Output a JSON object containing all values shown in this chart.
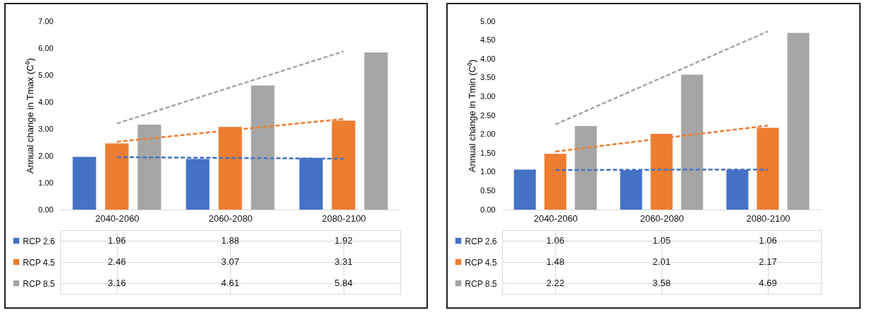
{
  "chart_data": [
    {
      "type": "bar",
      "ylabel": "Annual change in Tmax (C⁰)",
      "categories": [
        "2040-2060",
        "2060-2080",
        "2080-2100"
      ],
      "ylim": [
        0,
        7
      ],
      "yticks": [
        {
          "value": 0,
          "label": "0.00"
        },
        {
          "value": 1,
          "label": "1.00"
        },
        {
          "value": 2,
          "label": "2.00"
        },
        {
          "value": 3,
          "label": "3.00"
        },
        {
          "value": 4,
          "label": "4.00"
        },
        {
          "value": 5,
          "label": "5.00"
        },
        {
          "value": 6,
          "label": "6.00"
        },
        {
          "value": 7,
          "label": "7.00"
        }
      ],
      "tick_labels": "y",
      "legend": "bottom",
      "series": [
        {
          "name": "RCP 2.6",
          "color": "#4472c4",
          "values": [
            1.96,
            1.88,
            1.92
          ],
          "value_labels": [
            "1.96",
            "1.88",
            "1.92"
          ]
        },
        {
          "name": "RCP 4.5",
          "color": "#ed7d31",
          "values": [
            2.46,
            3.07,
            3.31
          ],
          "value_labels": [
            "2.46",
            "3.07",
            "3.31"
          ]
        },
        {
          "name": "RCP 8.5",
          "color": "#a5a5a5",
          "values": [
            3.16,
            4.61,
            5.84
          ],
          "value_labels": [
            "3.16",
            "4.61",
            "5.84"
          ]
        },
        {
          "type": "line",
          "line_style": "dashed",
          "color": "#4472c4",
          "values": [
            1.95,
            1.92,
            1.89
          ]
        },
        {
          "type": "line",
          "line_style": "dashed",
          "color": "#ed7d31",
          "values": [
            2.52,
            2.95,
            3.37
          ]
        },
        {
          "type": "line",
          "line_style": "dashed",
          "color": "#a5a5a5",
          "values": [
            3.2,
            4.54,
            5.88
          ]
        }
      ]
    },
    {
      "type": "bar",
      "ylabel": "Annual change in Tmin (C⁰)",
      "categories": [
        "2040-2060",
        "2060-2080",
        "2080-2100"
      ],
      "ylim": [
        0,
        5
      ],
      "yticks": [
        {
          "value": 0,
          "label": "0.00"
        },
        {
          "value": 0.5,
          "label": "0.50"
        },
        {
          "value": 1,
          "label": "1.00"
        },
        {
          "value": 1.5,
          "label": "1.50"
        },
        {
          "value": 2,
          "label": "2.00"
        },
        {
          "value": 2.5,
          "label": "2.50"
        },
        {
          "value": 3,
          "label": "3.00"
        },
        {
          "value": 3.5,
          "label": "3.50"
        },
        {
          "value": 4,
          "label": "4.00"
        },
        {
          "value": 4.5,
          "label": "4.50"
        },
        {
          "value": 5,
          "label": "5.00"
        }
      ],
      "tick_labels": "y",
      "legend": "bottom",
      "series": [
        {
          "name": "RCP 2.6",
          "color": "#4472c4",
          "values": [
            1.06,
            1.05,
            1.06
          ],
          "value_labels": [
            "1.06",
            "1.05",
            "1.06"
          ]
        },
        {
          "name": "RCP 4.5",
          "color": "#ed7d31",
          "values": [
            1.48,
            2.01,
            2.17
          ],
          "value_labels": [
            "1.48",
            "2.01",
            "2.17"
          ]
        },
        {
          "name": "RCP 8.5",
          "color": "#a5a5a5",
          "values": [
            2.22,
            3.58,
            4.69
          ],
          "value_labels": [
            "2.22",
            "3.58",
            "4.69"
          ]
        },
        {
          "type": "line",
          "line_style": "dashed",
          "color": "#4472c4",
          "values": [
            1.05,
            1.06,
            1.06
          ]
        },
        {
          "type": "line",
          "line_style": "dashed",
          "color": "#ed7d31",
          "values": [
            1.54,
            1.89,
            2.23
          ]
        },
        {
          "type": "line",
          "line_style": "dashed",
          "color": "#a5a5a5",
          "values": [
            2.26,
            3.5,
            4.73
          ]
        }
      ]
    }
  ]
}
